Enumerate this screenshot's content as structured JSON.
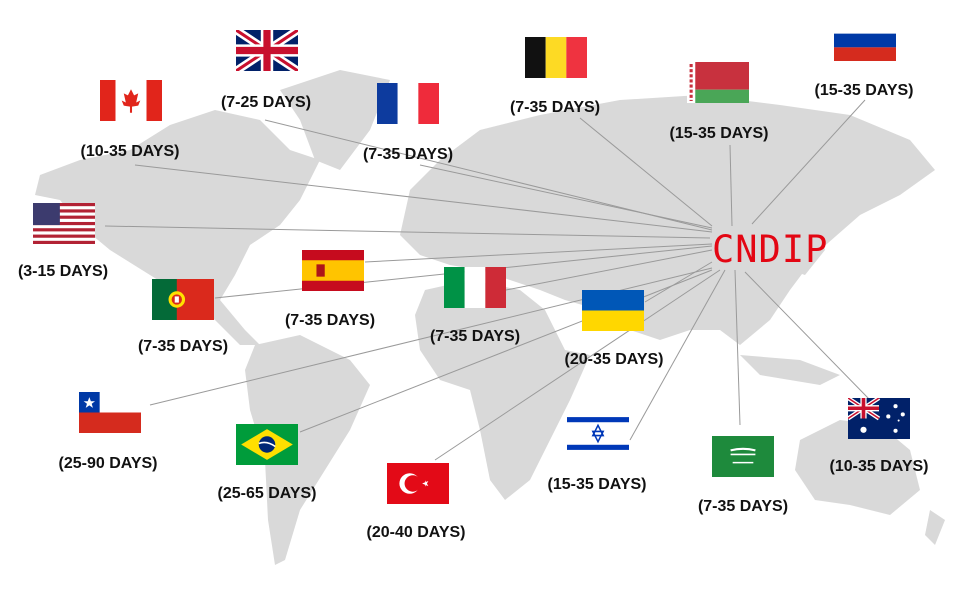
{
  "brand": {
    "text": "CNDIP",
    "color": "#e30613"
  },
  "map_color": "#d9d9d9",
  "destinations": [
    {
      "flag_icon": "uk-flag-icon",
      "label": "(7-25 DAYS)"
    },
    {
      "flag_icon": "canada-flag-icon",
      "label": "(10-35 DAYS)"
    },
    {
      "flag_icon": "france-flag-icon",
      "label": "(7-35 DAYS)"
    },
    {
      "flag_icon": "belgium-flag-icon",
      "label": "(7-35 DAYS)"
    },
    {
      "flag_icon": "belarus-flag-icon",
      "label": "(15-35 DAYS)"
    },
    {
      "flag_icon": "russia-flag-icon",
      "label": "(15-35 DAYS)"
    },
    {
      "flag_icon": "usa-flag-icon",
      "label": "(3-15 DAYS)"
    },
    {
      "flag_icon": "spain-flag-icon",
      "label": "(7-35 DAYS)"
    },
    {
      "flag_icon": "portugal-flag-icon",
      "label": "(7-35 DAYS)"
    },
    {
      "flag_icon": "italy-flag-icon",
      "label": "(7-35 DAYS)"
    },
    {
      "flag_icon": "ukraine-flag-icon",
      "label": "(20-35 DAYS)"
    },
    {
      "flag_icon": "chile-flag-icon",
      "label": "(25-90 DAYS)"
    },
    {
      "flag_icon": "brazil-flag-icon",
      "label": "(25-65 DAYS)"
    },
    {
      "flag_icon": "turkey-flag-icon",
      "label": "(20-40 DAYS)"
    },
    {
      "flag_icon": "israel-flag-icon",
      "label": "(15-35 DAYS)"
    },
    {
      "flag_icon": "saudi-arabia-flag-icon",
      "label": "(7-35 DAYS)"
    },
    {
      "flag_icon": "australia-flag-icon",
      "label": "(10-35 DAYS)"
    }
  ]
}
